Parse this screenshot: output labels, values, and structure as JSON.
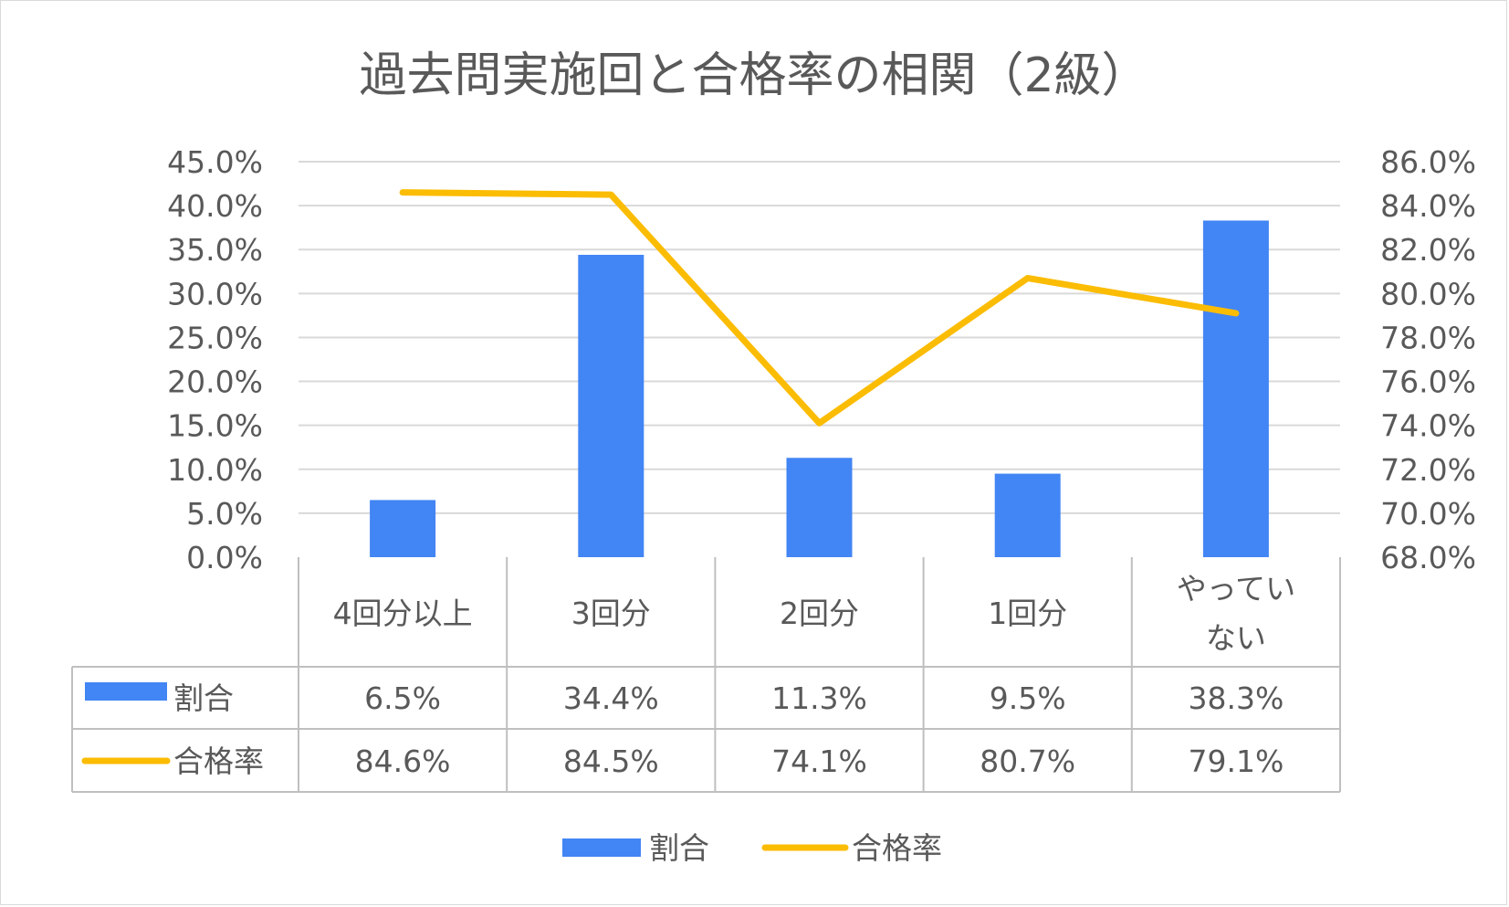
{
  "chart_data": {
    "type": "bar",
    "title": "過去問実施回と合格率の相関（2級）",
    "categories": [
      "4回分以上",
      "3回分",
      "2回分",
      "1回分",
      "やってい\nない"
    ],
    "series": [
      {
        "name": "割合",
        "type": "bar",
        "axis": "left",
        "color": "#4285F4",
        "values": [
          6.5,
          34.4,
          11.3,
          9.5,
          38.3
        ],
        "labels": [
          "6.5%",
          "34.4%",
          "11.3%",
          "9.5%",
          "38.3%"
        ]
      },
      {
        "name": "合格率",
        "type": "line",
        "axis": "right",
        "color": "#FBBC04",
        "values": [
          84.6,
          84.5,
          74.1,
          80.7,
          79.1
        ],
        "labels": [
          "84.6%",
          "84.5%",
          "74.1%",
          "80.7%",
          "79.1%"
        ]
      }
    ],
    "y_left": {
      "ylim": [
        0,
        45
      ],
      "ticks": [
        "0.0%",
        "5.0%",
        "10.0%",
        "15.0%",
        "20.0%",
        "25.0%",
        "30.0%",
        "35.0%",
        "40.0%",
        "45.0%"
      ]
    },
    "y_right": {
      "ylim": [
        68,
        86
      ],
      "ticks": [
        "68.0%",
        "70.0%",
        "72.0%",
        "74.0%",
        "76.0%",
        "78.0%",
        "80.0%",
        "82.0%",
        "84.0%",
        "86.0%"
      ]
    },
    "grid": true,
    "data_table": true,
    "legend": "bottom"
  }
}
